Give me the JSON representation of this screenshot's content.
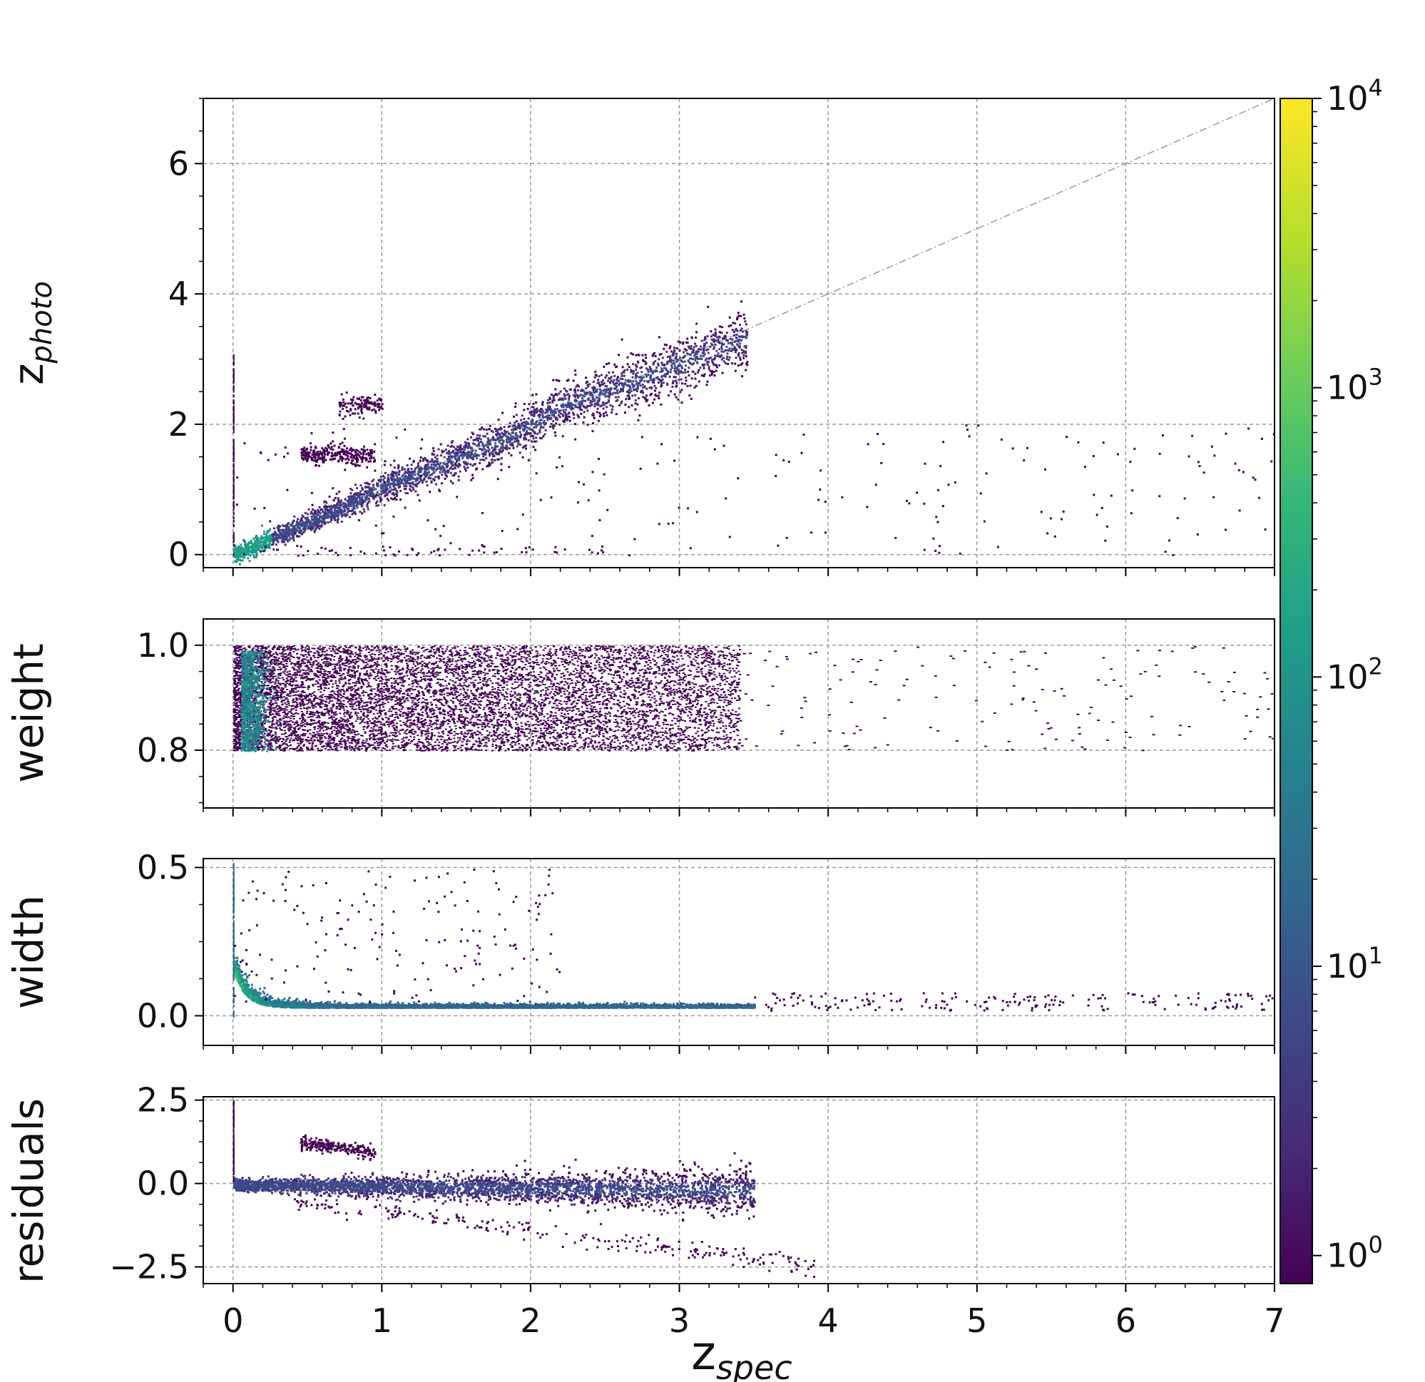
{
  "chart_data": {
    "type": "heatmap",
    "x_axis": {
      "label_base": "z",
      "label_sub": "spec",
      "range": [
        -0.2,
        7.0
      ],
      "ticks": [
        0,
        1,
        2,
        3,
        4,
        5,
        6,
        7
      ],
      "tick_labels": [
        "0",
        "1",
        "2",
        "3",
        "4",
        "5",
        "6",
        "7"
      ]
    },
    "colormap": "viridis",
    "colorbar": {
      "scale": "log",
      "range": [
        0.8,
        10000
      ],
      "ticks": [
        1,
        10,
        100,
        1000,
        10000
      ],
      "tick_labels": [
        {
          "base": "10",
          "exp": "0"
        },
        {
          "base": "10",
          "exp": "1"
        },
        {
          "base": "10",
          "exp": "2"
        },
        {
          "base": "10",
          "exp": "3"
        },
        {
          "base": "10",
          "exp": "4"
        }
      ],
      "colors": [
        "#440154",
        "#482878",
        "#3e4989",
        "#31688e",
        "#26828e",
        "#1f9e89",
        "#35b779",
        "#6ece58",
        "#b5de2b",
        "#fde725"
      ]
    },
    "grid": true,
    "panels": [
      {
        "id": "zphoto",
        "ylabel_base": "z",
        "ylabel_sub": "photo",
        "ylim": [
          -0.2,
          7.0
        ],
        "yticks": [
          0,
          2,
          4,
          6
        ],
        "ytick_labels": [
          "0",
          "2",
          "4",
          "6"
        ],
        "reference_line": {
          "from": [
            0,
            0
          ],
          "to": [
            7,
            7
          ]
        },
        "ridge": {
          "x": [
            0.0,
            0.2,
            0.5,
            0.8,
            1.0,
            1.3,
            1.6,
            1.9,
            2.0,
            2.2,
            2.5,
            2.8,
            3.0,
            3.3,
            3.5
          ],
          "y": [
            0.0,
            0.2,
            0.5,
            0.8,
            1.05,
            1.3,
            1.6,
            1.85,
            2.0,
            2.3,
            2.5,
            2.75,
            2.95,
            3.2,
            3.4
          ]
        }
      },
      {
        "id": "weight",
        "ylabel": "weight",
        "ylim": [
          0.69,
          1.05
        ],
        "yticks": [
          0.8,
          1.0
        ],
        "ytick_labels": [
          "0.8",
          "1.0"
        ],
        "band": [
          0.8,
          1.0
        ]
      },
      {
        "id": "width",
        "ylabel": "width",
        "ylim": [
          -0.1,
          0.53
        ],
        "yticks": [
          0.0,
          0.5
        ],
        "ytick_labels": [
          "0.0",
          "0.5"
        ]
      },
      {
        "id": "residuals",
        "ylabel": "residuals",
        "ylim": [
          -3.0,
          2.6
        ],
        "yticks": [
          -2.5,
          0.0,
          2.5
        ],
        "ytick_labels": [
          "−2.5",
          "0.0",
          "2.5"
        ]
      }
    ]
  }
}
